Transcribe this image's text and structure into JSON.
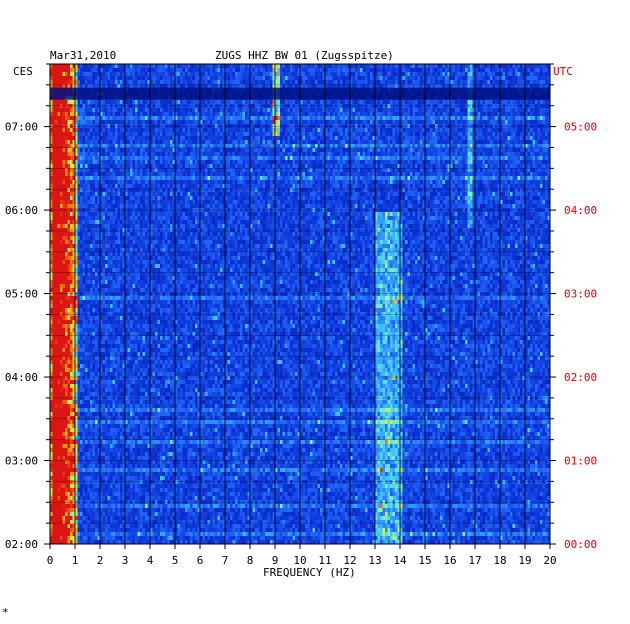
{
  "chart_data": {
    "type": "heatmap",
    "date": "Mar31,2010",
    "title": "ZUGS HHZ BW 01 (Zugsspitze)",
    "xlabel": "FREQUENCY (HZ)",
    "left_zone": "CES",
    "right_zone": "UTC",
    "xlim": [
      0,
      20
    ],
    "x_ticks": [
      "0",
      "1",
      "2",
      "3",
      "4",
      "5",
      "6",
      "7",
      "8",
      "9",
      "10",
      "11",
      "12",
      "13",
      "14",
      "15",
      "16",
      "17",
      "18",
      "19",
      "20"
    ],
    "left_time_labels": [
      "02:00",
      "03:00",
      "04:00",
      "05:00",
      "06:00",
      "07:00"
    ],
    "right_time_labels": [
      "00:00",
      "01:00",
      "02:00",
      "03:00",
      "04:00",
      "05:00"
    ],
    "time_range_ces": [
      "02:00",
      "07:45"
    ],
    "colors": {
      "background": "#0a1fc8",
      "low": "#0014a0",
      "mid": "#2a6cff",
      "high_cyan": "#33e0ff",
      "peak_yellow": "#f0f020",
      "peak_red": "#e01010",
      "utc_text": "#e00000",
      "text": "#000000"
    },
    "features": [
      {
        "name": "microseism band",
        "freq_hz": [
          0.1,
          1.0
        ],
        "level": "high"
      },
      {
        "name": "line ~9 Hz",
        "freq_hz": [
          8.9,
          9.1
        ],
        "time_ces": [
          "06:55",
          "07:45"
        ],
        "level": "high"
      },
      {
        "name": "band ~13.5 Hz",
        "freq_hz": [
          13.0,
          14.0
        ],
        "time_ces": [
          "02:00",
          "06:00"
        ],
        "level": "medium"
      },
      {
        "name": "line ~16.7 Hz",
        "freq_hz": [
          16.6,
          16.8
        ],
        "time_ces": [
          "05:50",
          "07:45"
        ],
        "level": "medium"
      }
    ]
  },
  "footer_mark": "*"
}
